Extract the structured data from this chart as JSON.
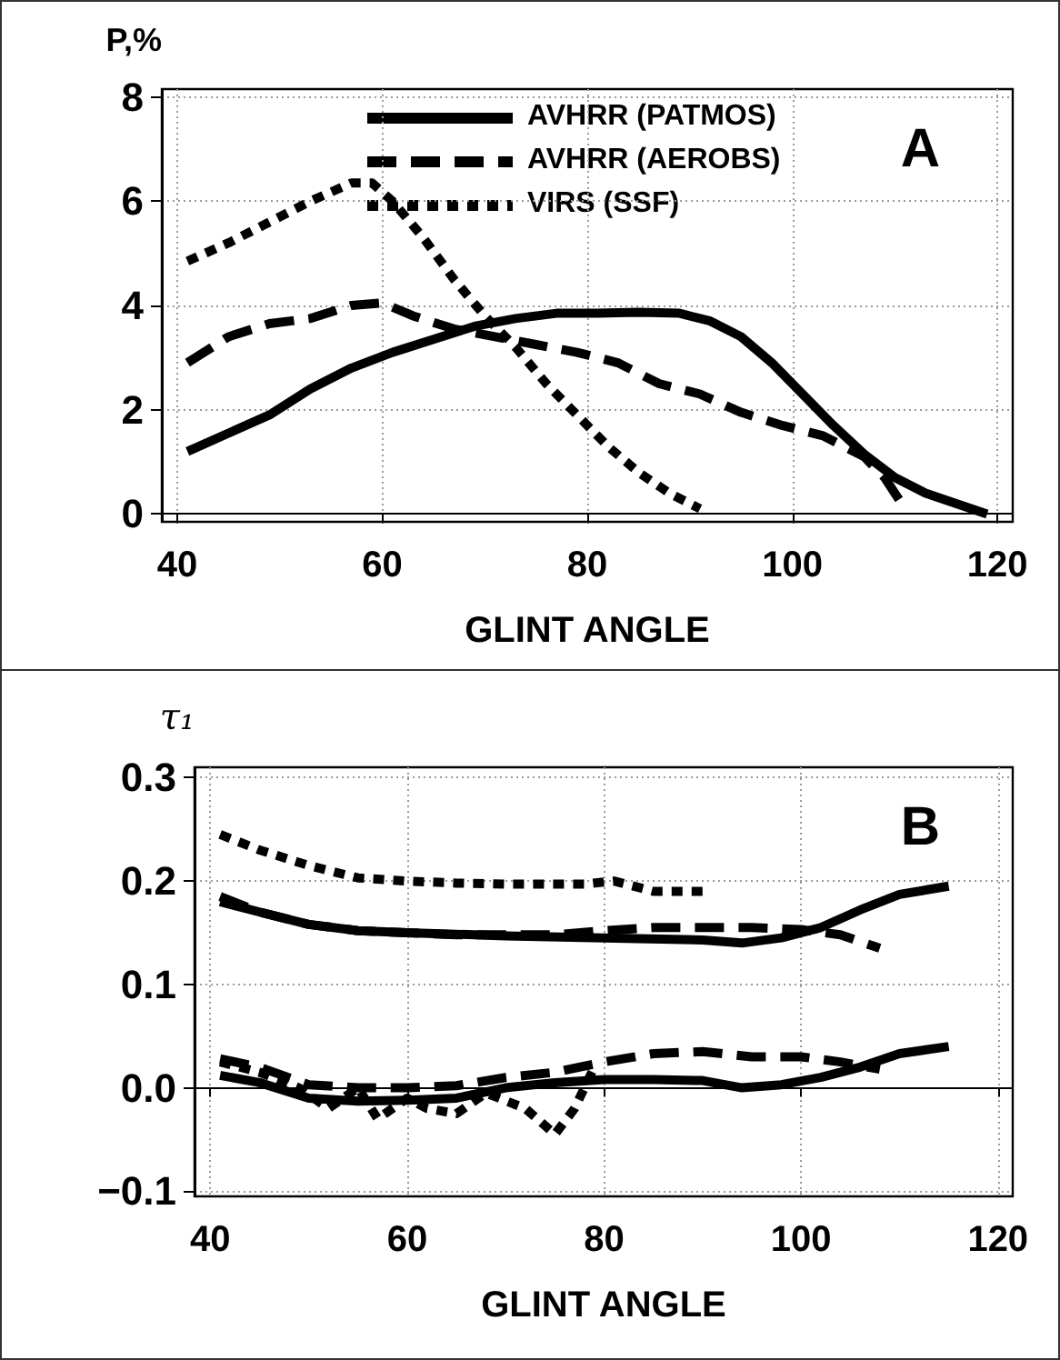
{
  "chart_data": [
    {
      "type": "line",
      "ylabel": "P,%",
      "xlabel": "GLINT ANGLE",
      "annotations": [
        "A"
      ],
      "xlim": [
        38.5,
        121.5
      ],
      "xticks": [
        40,
        60,
        80,
        100,
        120
      ],
      "ylim": [
        -0.15,
        8.15
      ],
      "yticks": [
        0,
        2,
        4,
        6,
        8
      ],
      "grid": true,
      "legend": "top",
      "marker": "none",
      "series": [
        {
          "name": "AVHRR (PATMOS)",
          "color": "#000000",
          "line_style": "solid",
          "x": [
            41,
            45,
            49,
            53,
            57,
            61,
            65,
            69,
            73,
            77,
            81,
            85,
            89,
            92,
            95,
            98,
            101,
            104,
            107,
            110,
            113,
            116,
            119
          ],
          "values": [
            1.2,
            1.55,
            1.9,
            2.4,
            2.8,
            3.1,
            3.35,
            3.6,
            3.75,
            3.85,
            3.85,
            3.87,
            3.85,
            3.7,
            3.4,
            2.9,
            2.3,
            1.7,
            1.15,
            0.7,
            0.4,
            0.2,
            0.0
          ]
        },
        {
          "name": "AVHRR (AEROBS)",
          "color": "#000000",
          "line_style": "dashed",
          "x": [
            41,
            45,
            49,
            53,
            57,
            60,
            63,
            67,
            71,
            75,
            79,
            83,
            87,
            91,
            95,
            99,
            103,
            107,
            109,
            111
          ],
          "values": [
            2.9,
            3.4,
            3.65,
            3.75,
            4.0,
            4.05,
            3.8,
            3.55,
            3.4,
            3.25,
            3.1,
            2.9,
            2.5,
            2.3,
            1.95,
            1.7,
            1.5,
            1.1,
            0.7,
            0.1
          ]
        },
        {
          "name": "VIRS (SSF)",
          "color": "#000000",
          "line_style": "dotted",
          "x": [
            41,
            45,
            49,
            53,
            57,
            59,
            61,
            64,
            67,
            70,
            73,
            76,
            79,
            82,
            85,
            88,
            91
          ],
          "values": [
            4.85,
            5.2,
            5.6,
            6.0,
            6.35,
            6.35,
            6.0,
            5.3,
            4.5,
            3.8,
            3.2,
            2.5,
            1.9,
            1.3,
            0.8,
            0.4,
            0.1
          ]
        }
      ]
    },
    {
      "type": "line",
      "ylabel": "τ₁",
      "xlabel": "GLINT ANGLE",
      "annotations": [
        "B"
      ],
      "xlim": [
        38.4,
        121.5
      ],
      "xticks": [
        40,
        60,
        80,
        100,
        120
      ],
      "ylim": [
        -0.105,
        0.31
      ],
      "yticks": [
        {
          "value": -0.1,
          "label": "−0.1"
        },
        {
          "value": 0,
          "label": "0.0"
        },
        0.1,
        0.2,
        0.3
      ],
      "grid": true,
      "legend": false,
      "marker": "none",
      "series": [
        {
          "color": "#000000",
          "line_style": "solid",
          "x": [
            41,
            45,
            50,
            55,
            60,
            70,
            80,
            90,
            94,
            98,
            102,
            106,
            110,
            115
          ],
          "values": [
            0.18,
            0.17,
            0.158,
            0.152,
            0.15,
            0.147,
            0.145,
            0.143,
            0.14,
            0.145,
            0.155,
            0.172,
            0.187,
            0.195
          ]
        },
        {
          "color": "#000000",
          "line_style": "dashed",
          "x": [
            41,
            45,
            50,
            55,
            60,
            65,
            70,
            75,
            80,
            85,
            90,
            95,
            100,
            104,
            108
          ],
          "values": [
            0.185,
            0.17,
            0.158,
            0.152,
            0.15,
            0.148,
            0.148,
            0.148,
            0.152,
            0.155,
            0.155,
            0.155,
            0.153,
            0.148,
            0.135
          ]
        },
        {
          "color": "#000000",
          "line_style": "dotted",
          "x": [
            41,
            45,
            50,
            55,
            60,
            65,
            70,
            75,
            78,
            81,
            85,
            90
          ],
          "values": [
            0.245,
            0.23,
            0.215,
            0.203,
            0.2,
            0.198,
            0.197,
            0.197,
            0.197,
            0.2,
            0.19,
            0.19
          ]
        },
        {
          "color": "#000000",
          "line_style": "solid",
          "x": [
            41,
            45,
            50,
            55,
            60,
            65,
            70,
            75,
            80,
            85,
            90,
            94,
            98,
            102,
            106,
            110,
            115
          ],
          "values": [
            0.012,
            0.005,
            -0.01,
            -0.013,
            -0.012,
            -0.01,
            0.0,
            0.005,
            0.008,
            0.008,
            0.007,
            0.0,
            0.003,
            0.01,
            0.02,
            0.033,
            0.04
          ]
        },
        {
          "color": "#000000",
          "line_style": "dashed",
          "x": [
            41,
            45,
            50,
            55,
            60,
            65,
            70,
            75,
            80,
            85,
            90,
            95,
            100,
            104,
            108
          ],
          "values": [
            0.028,
            0.02,
            0.003,
            0.0,
            0.0,
            0.002,
            0.01,
            0.015,
            0.025,
            0.033,
            0.035,
            0.03,
            0.03,
            0.025,
            0.018
          ]
        },
        {
          "color": "#000000",
          "line_style": "dotted",
          "x": [
            41,
            45,
            49,
            52,
            55,
            57,
            60,
            62,
            65,
            68,
            72,
            75,
            77,
            79
          ],
          "values": [
            0.025,
            0.015,
            0.0,
            -0.02,
            0.0,
            -0.03,
            -0.01,
            -0.02,
            -0.025,
            -0.005,
            -0.02,
            -0.045,
            -0.02,
            0.02
          ]
        }
      ]
    }
  ]
}
